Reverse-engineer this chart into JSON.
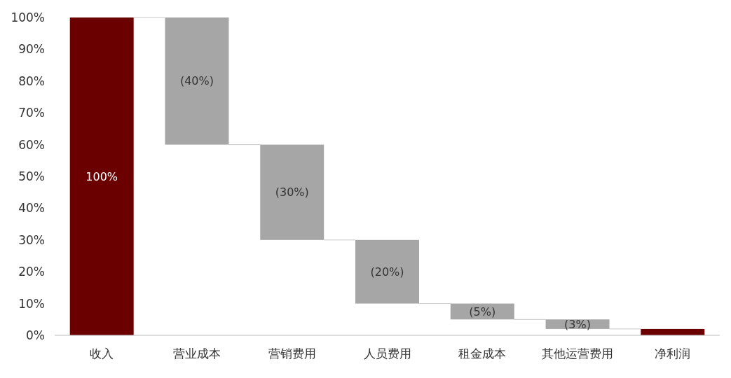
{
  "chart_data": {
    "type": "bar",
    "categories": [
      "收入",
      "营业成本",
      "营销费用",
      "人员费用",
      "租金成本",
      "其他运营费用",
      "净利润"
    ],
    "values": [
      100,
      -40,
      -30,
      -20,
      -5,
      -3,
      2
    ],
    "base": [
      0,
      100,
      60,
      30,
      10,
      5,
      0
    ],
    "colors": [
      "#6b0000",
      "#a6a6a6",
      "#a6a6a6",
      "#a6a6a6",
      "#a6a6a6",
      "#a6a6a6",
      "#6b0000"
    ],
    "value_labels": [
      "100%",
      "(40%)",
      "(30%)",
      "(20%)",
      "(5%)",
      "(3%)",
      null
    ],
    "ylim": [
      0,
      100
    ],
    "yticks": [
      {
        "value": 0,
        "label": "0%"
      },
      {
        "value": 10,
        "label": "10%"
      },
      {
        "value": 20,
        "label": "20%"
      },
      {
        "value": 30,
        "label": "30%"
      },
      {
        "value": 40,
        "label": "40%"
      },
      {
        "value": 50,
        "label": "50%"
      },
      {
        "value": 60,
        "label": "60%"
      },
      {
        "value": 70,
        "label": "70%"
      },
      {
        "value": 80,
        "label": "80%"
      },
      {
        "value": 90,
        "label": "90%"
      },
      {
        "value": 100,
        "label": "100%"
      }
    ],
    "grid": false
  }
}
